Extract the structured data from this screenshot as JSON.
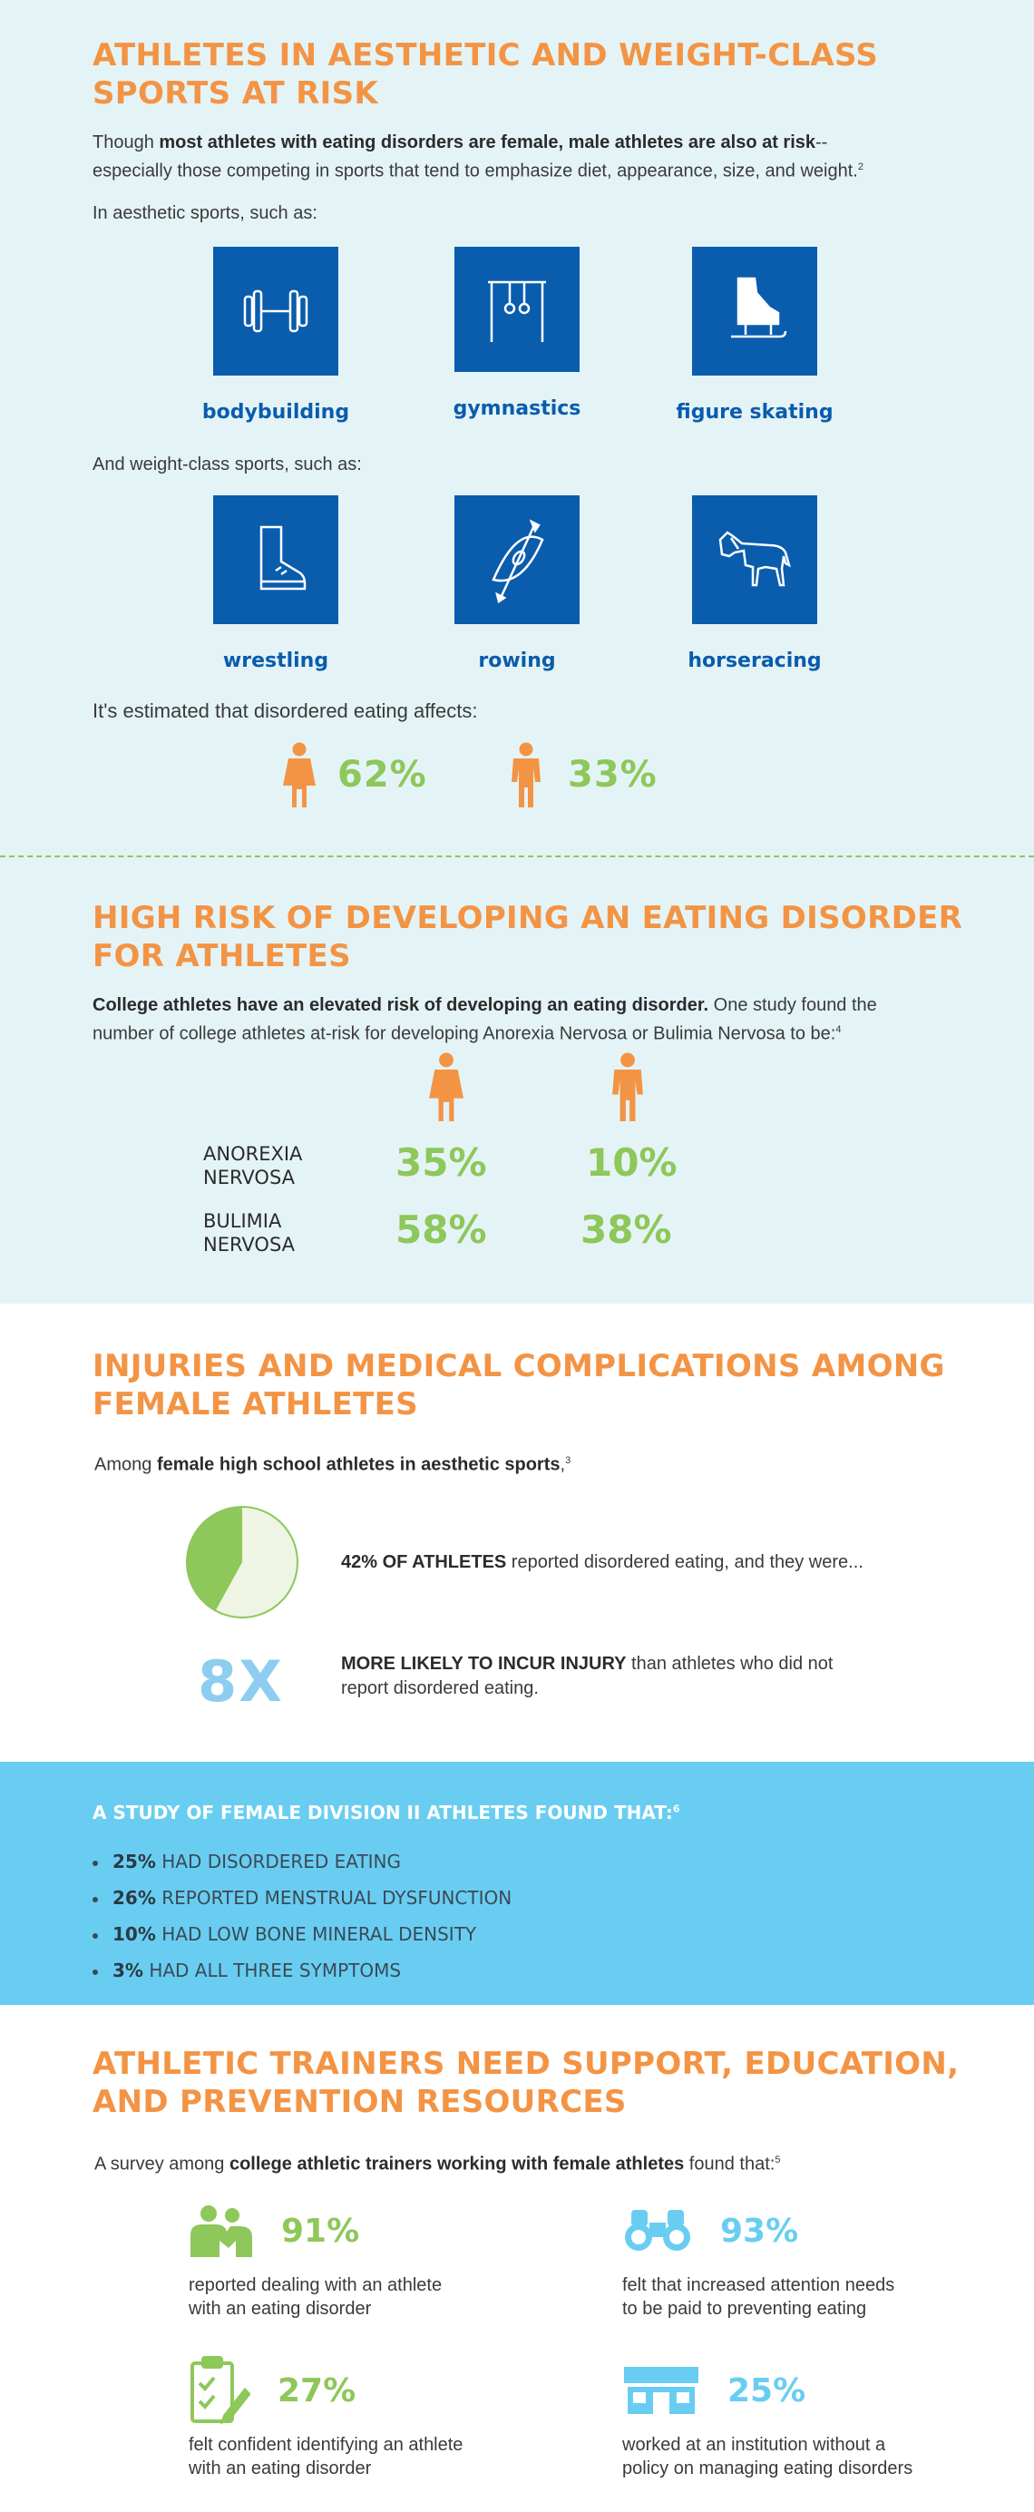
{
  "s1": {
    "title": "ATHLETES IN AESTHETIC AND WEIGHT-CLASS SPORTS AT RISK",
    "intro_pre": "Though ",
    "intro_bold": "most athletes with eating disorders are female, male athletes are also at risk",
    "intro_post": "--especially those competing in sports that tend to emphasize diet, appearance, size, and weight.",
    "intro_sup": "2",
    "aesthetic_label": "In aesthetic sports, such as:",
    "aesthetic": [
      {
        "label": "bodybuilding",
        "icon": "dumbbell-icon"
      },
      {
        "label": "gymnastics",
        "icon": "rings-icon"
      },
      {
        "label": "figure skating",
        "icon": "skate-icon"
      }
    ],
    "weight_label": "And weight-class sports, such as:",
    "weight": [
      {
        "label": "wrestling",
        "icon": "wrestling-shoe-icon"
      },
      {
        "label": "rowing",
        "icon": "kayak-icon"
      },
      {
        "label": "horseracing",
        "icon": "horse-icon"
      }
    ],
    "estimate_label": "It's estimated that disordered eating affects:",
    "female_pct": "62%",
    "male_pct": "33%"
  },
  "s2": {
    "title": "HIGH RISK OF DEVELOPING AN EATING DISORDER FOR ATHLETES",
    "intro_bold": "College athletes have an elevated risk of developing an eating disorder.",
    "intro_post": " One study found the number of college athletes at-risk for developing Anorexia Nervosa or Bulimia Nervosa to be:",
    "intro_sup": "4",
    "rows": [
      {
        "label_1": "ANOREXIA",
        "label_2": "NERVOSA",
        "female": "35%",
        "male": "10%"
      },
      {
        "label_1": "BULIMIA",
        "label_2": "NERVOSA",
        "female": "58%",
        "male": "38%"
      }
    ]
  },
  "s3": {
    "title": "INJURIES AND MEDICAL COMPLICATIONS AMONG FEMALE ATHLETES",
    "intro_pre": "Among ",
    "intro_bold": "female high school athletes in aesthetic sports",
    "intro_post": ",",
    "intro_sup": "3",
    "pie_fraction": 0.42,
    "stat1_bold": "42% OF ATHLETES",
    "stat1_post": " reported disordered eating, and they were...",
    "big_num": "8X",
    "stat2_bold": "MORE LIKELY TO INCUR INJURY",
    "stat2_post_1": " than athletes who did not",
    "stat2_post_2": "report disordered eating."
  },
  "s4": {
    "title": "A STUDY OF FEMALE DIVISION II ATHLETES FOUND THAT:",
    "title_sup": "6",
    "items": [
      {
        "pct": "25%",
        "text": " HAD DISORDERED EATING"
      },
      {
        "pct": "26%",
        "text": " REPORTED MENSTRUAL DYSFUNCTION"
      },
      {
        "pct": "10%",
        "text": " HAD LOW BONE MINERAL DENSITY"
      },
      {
        "pct": "3%",
        "text": " HAD ALL THREE SYMPTOMS"
      }
    ]
  },
  "s5": {
    "title": "ATHLETIC TRAINERS NEED SUPPORT, EDUCATION, AND PREVENTION RESOURCES",
    "intro_pre": "A survey among ",
    "intro_bold": "college athletic trainers working with female athletes",
    "intro_post": " found that:",
    "intro_sup": "5",
    "items": [
      {
        "pct": "91%",
        "line1": "reported dealing with an athlete",
        "line2": "with an eating disorder",
        "icon": "people-icon",
        "color": "#8ec75a"
      },
      {
        "pct": "93%",
        "line1": "felt that increased attention needs",
        "line2": "to be paid to preventing eating",
        "icon": "binoculars-icon",
        "color": "#69cdf2"
      },
      {
        "pct": "27%",
        "line1": "felt confident identifying an athlete",
        "line2": "with an eating disorder",
        "icon": "clipboard-icon",
        "color": "#8ec75a"
      },
      {
        "pct": "25%",
        "line1": "worked at an institution without a",
        "line2": "policy on managing eating disorders",
        "icon": "building-icon",
        "color": "#69cdf2"
      }
    ]
  },
  "colors": {
    "orange": "#f39445",
    "blue": "#0a5cad",
    "green": "#8ec75a",
    "light_blue": "#69cdf2"
  }
}
